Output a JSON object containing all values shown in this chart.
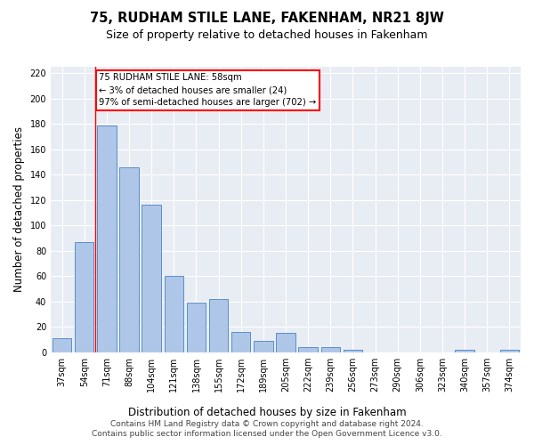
{
  "title": "75, RUDHAM STILE LANE, FAKENHAM, NR21 8JW",
  "subtitle": "Size of property relative to detached houses in Fakenham",
  "xlabel": "Distribution of detached houses by size in Fakenham",
  "ylabel": "Number of detached properties",
  "categories": [
    "37sqm",
    "54sqm",
    "71sqm",
    "88sqm",
    "104sqm",
    "121sqm",
    "138sqm",
    "155sqm",
    "172sqm",
    "189sqm",
    "205sqm",
    "222sqm",
    "239sqm",
    "256sqm",
    "273sqm",
    "290sqm",
    "306sqm",
    "323sqm",
    "340sqm",
    "357sqm",
    "374sqm"
  ],
  "values": [
    11,
    87,
    179,
    146,
    116,
    60,
    39,
    42,
    16,
    9,
    15,
    4,
    4,
    2,
    0,
    0,
    0,
    0,
    2,
    0,
    2
  ],
  "bar_color": "#aec6e8",
  "bar_edge_color": "#5b8fc9",
  "property_line_x": 1.5,
  "annotation_text": "75 RUDHAM STILE LANE: 58sqm\n← 3% of detached houses are smaller (24)\n97% of semi-detached houses are larger (702) →",
  "annotation_box_color": "white",
  "annotation_box_edge_color": "red",
  "vline_color": "red",
  "ylim": [
    0,
    225
  ],
  "yticks": [
    0,
    20,
    40,
    60,
    80,
    100,
    120,
    140,
    160,
    180,
    200,
    220
  ],
  "background_color": "#e8edf4",
  "footer_line1": "Contains HM Land Registry data © Crown copyright and database right 2024.",
  "footer_line2": "Contains public sector information licensed under the Open Government Licence v3.0.",
  "title_fontsize": 10.5,
  "subtitle_fontsize": 9,
  "tick_fontsize": 7,
  "ylabel_fontsize": 8.5,
  "xlabel_fontsize": 8.5,
  "footer_fontsize": 6.5
}
